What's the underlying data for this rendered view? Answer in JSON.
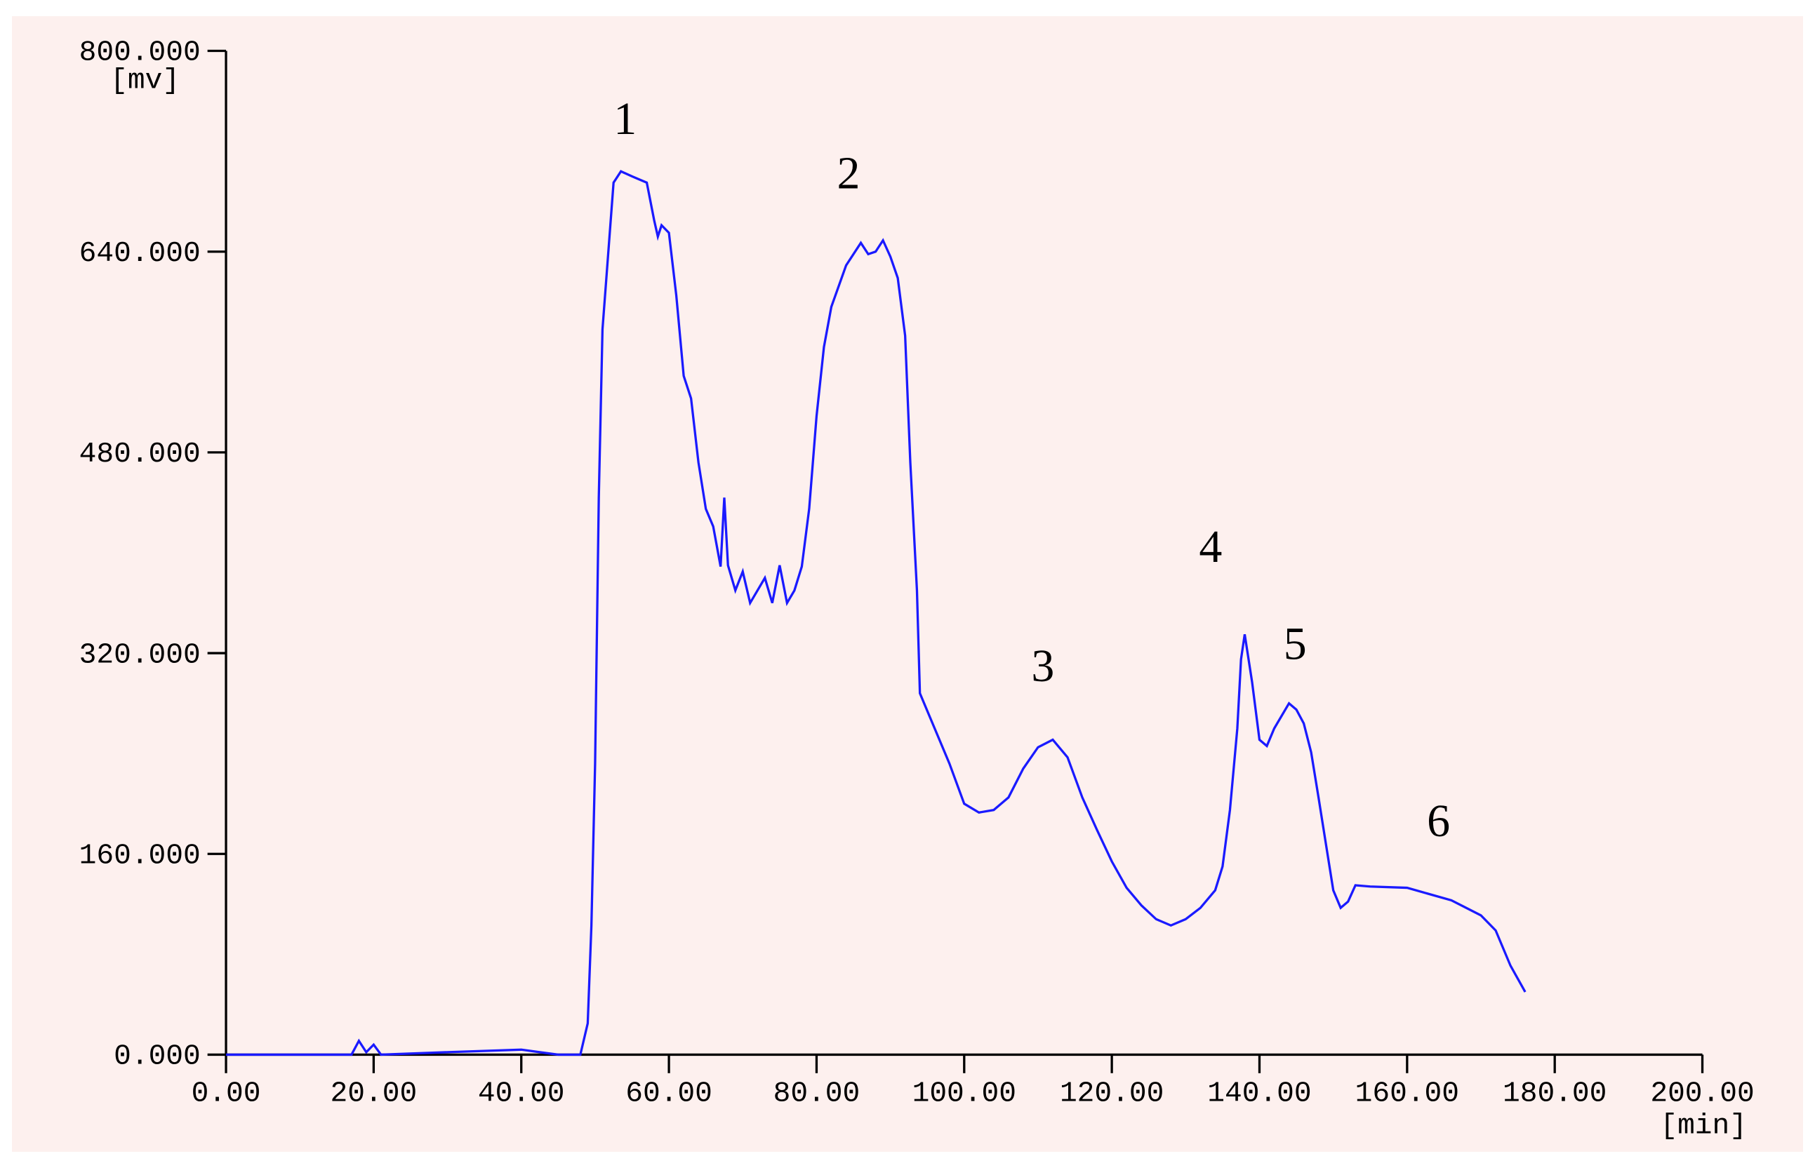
{
  "chart_data": {
    "type": "line",
    "y_unit_label": "[mv]",
    "x_unit_label": "[min]",
    "x": [
      0,
      17,
      18,
      19,
      20,
      21,
      30,
      40,
      45,
      48,
      49,
      49.5,
      50,
      50.5,
      51,
      52,
      52.5,
      53.5,
      55,
      57,
      58,
      58.5,
      59,
      60,
      61,
      62,
      63,
      64,
      65,
      66,
      67,
      67.5,
      68,
      69,
      70,
      71,
      72,
      73,
      74,
      75,
      76,
      77,
      78,
      79,
      80,
      81,
      82,
      84,
      86,
      87,
      88,
      89,
      90,
      91,
      92,
      92.7,
      93.6,
      94,
      96,
      98,
      100,
      102,
      104,
      106,
      108,
      110,
      112,
      114,
      116,
      118,
      120,
      122,
      124,
      126,
      128,
      130,
      132,
      134,
      135,
      136,
      137,
      137.5,
      138,
      139,
      140,
      141,
      142,
      144,
      145,
      146,
      147,
      148,
      149,
      150,
      151,
      152,
      153,
      155,
      160,
      163,
      166,
      170,
      172,
      174,
      176
    ],
    "series": [
      {
        "name": "signal",
        "color": "#1a1aff",
        "values": [
          0,
          0,
          11,
          2,
          8,
          0,
          2,
          4,
          0,
          0,
          25,
          103,
          232,
          444,
          578,
          656,
          695,
          704,
          700,
          695,
          665,
          652,
          661,
          655,
          605,
          541,
          523,
          472,
          435,
          421,
          389,
          444,
          390,
          370,
          385,
          360,
          370,
          380,
          360,
          390,
          360,
          370,
          389,
          435,
          509,
          564,
          596,
          629,
          647,
          638,
          640,
          649,
          636,
          619,
          573,
          472,
          370,
          288,
          260,
          232,
          200,
          193,
          195,
          205,
          228,
          245,
          251,
          237,
          205,
          179,
          154,
          133,
          119,
          108,
          103,
          108,
          117,
          131,
          150,
          195,
          260,
          315,
          335,
          297,
          251,
          246,
          260,
          280,
          275,
          264,
          241,
          205,
          168,
          131,
          117,
          122,
          135,
          134,
          133,
          128,
          123,
          111,
          99,
          71,
          50
        ]
      }
    ],
    "xlim": [
      0,
      200
    ],
    "xticks": [
      {
        "value": 0,
        "label": "0.00"
      },
      {
        "value": 20,
        "label": "20.00"
      },
      {
        "value": 40,
        "label": "40.00"
      },
      {
        "value": 60,
        "label": "60.00"
      },
      {
        "value": 80,
        "label": "80.00"
      },
      {
        "value": 100,
        "label": "100.00"
      },
      {
        "value": 120,
        "label": "120.00"
      },
      {
        "value": 140,
        "label": "140.00"
      },
      {
        "value": 160,
        "label": "160.00"
      },
      {
        "value": 180,
        "label": "180.00"
      },
      {
        "value": 200,
        "label": "200.00"
      }
    ],
    "ylim": [
      0,
      800
    ],
    "yticks": [
      {
        "value": 0,
        "label": "0.000"
      },
      {
        "value": 160,
        "label": "160.000"
      },
      {
        "value": 320,
        "label": "320.000"
      },
      {
        "value": 480,
        "label": "480.000"
      },
      {
        "value": 640,
        "label": "640.000"
      },
      {
        "value": 800,
        "label": "800.000"
      }
    ],
    "annotations": [
      {
        "text": "1"
      },
      {
        "text": "2"
      },
      {
        "text": "3"
      },
      {
        "text": "4"
      },
      {
        "text": "5"
      },
      {
        "text": "6"
      }
    ]
  }
}
